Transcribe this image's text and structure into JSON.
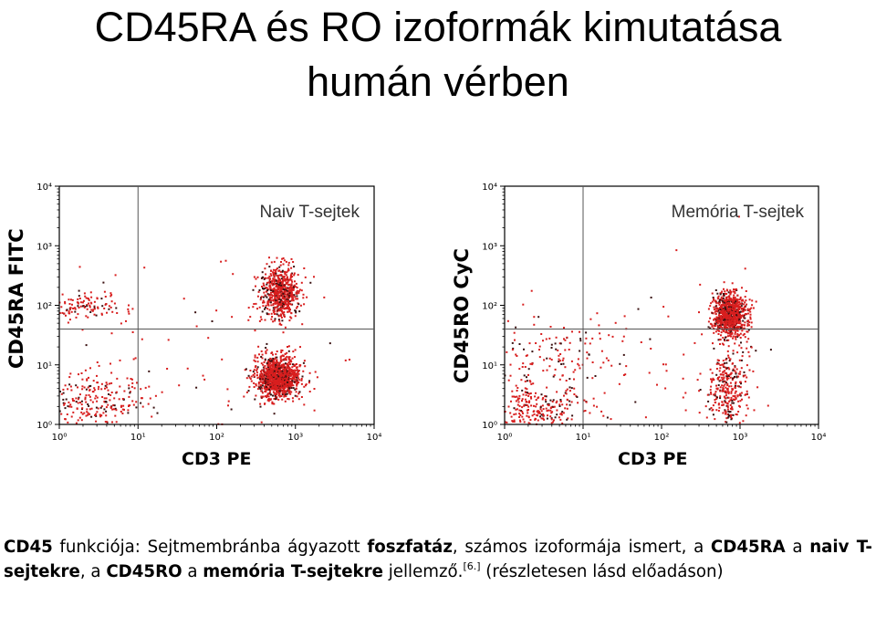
{
  "title_line1": "CD45RA és RO izoformák kimutatása",
  "title_line2": "humán vérben",
  "chart_data": [
    {
      "type": "scatter",
      "panel_title": "Naiv T-sejtek",
      "xlabel": "CD3 PE",
      "ylabel": "CD45RA FITC",
      "xscale": "log",
      "yscale": "log",
      "xlim": [
        1,
        10000
      ],
      "ylim": [
        1,
        10000
      ],
      "xticks": [
        "10⁰",
        "10¹",
        "10²",
        "10³",
        "10⁴"
      ],
      "yticks": [
        "10⁰",
        "10¹",
        "10²",
        "10³",
        "10⁴"
      ],
      "gates": {
        "x": 10,
        "y": 40
      },
      "point_color": "#d81e1e",
      "populations": [
        {
          "x": 2.2,
          "y": 100,
          "spread_x": 0.25,
          "spread_y": 0.12,
          "count": 120
        },
        {
          "x": 2.6,
          "y": 2.4,
          "spread_x": 0.35,
          "spread_y": 0.25,
          "count": 260
        },
        {
          "x": 650,
          "y": 160,
          "spread_x": 0.12,
          "spread_y": 0.22,
          "count": 650
        },
        {
          "x": 600,
          "y": 6,
          "spread_x": 0.14,
          "spread_y": 0.18,
          "count": 1100
        },
        {
          "x": 100,
          "y": 20,
          "spread_x": 1.0,
          "spread_y": 0.9,
          "count": 80
        }
      ]
    },
    {
      "type": "scatter",
      "panel_title": "Memória T-sejtek",
      "xlabel": "CD3 PE",
      "ylabel": "CD45RO CyC",
      "xscale": "log",
      "yscale": "log",
      "xlim": [
        1,
        10000
      ],
      "ylim": [
        1,
        10000
      ],
      "xticks": [
        "10⁰",
        "10¹",
        "10²",
        "10³",
        "10⁴"
      ],
      "yticks": [
        "10⁰",
        "10¹",
        "10²",
        "10³",
        "10⁴"
      ],
      "gates": {
        "x": 10,
        "y": 40
      },
      "point_color": "#d81e1e",
      "populations": [
        {
          "x": 750,
          "y": 70,
          "spread_x": 0.1,
          "spread_y": 0.18,
          "count": 900
        },
        {
          "x": 700,
          "y": 4,
          "spread_x": 0.12,
          "spread_y": 0.35,
          "count": 320
        },
        {
          "x": 2.5,
          "y": 1.8,
          "spread_x": 0.35,
          "spread_y": 0.2,
          "count": 260
        },
        {
          "x": 4,
          "y": 12,
          "spread_x": 0.5,
          "spread_y": 0.35,
          "count": 150
        },
        {
          "x": 80,
          "y": 15,
          "spread_x": 0.9,
          "spread_y": 0.7,
          "count": 60
        }
      ]
    }
  ],
  "caption": {
    "p1": "CD45",
    "p2": " funkciója: Sejtmembránba ágyazott ",
    "p3": "foszfatáz",
    "p4": ", számos izoformája ismert, a ",
    "p5": "CD45RA",
    "p6": " a ",
    "p7": "naiv T-sejtekre",
    "p8": ", a ",
    "p9": "CD45RO",
    "p10": " a ",
    "p11": "memória T-sejtekre",
    "p12": " jellemző.",
    "ref": "[6.]",
    "p13": " (részletesen lásd előadáson)"
  }
}
